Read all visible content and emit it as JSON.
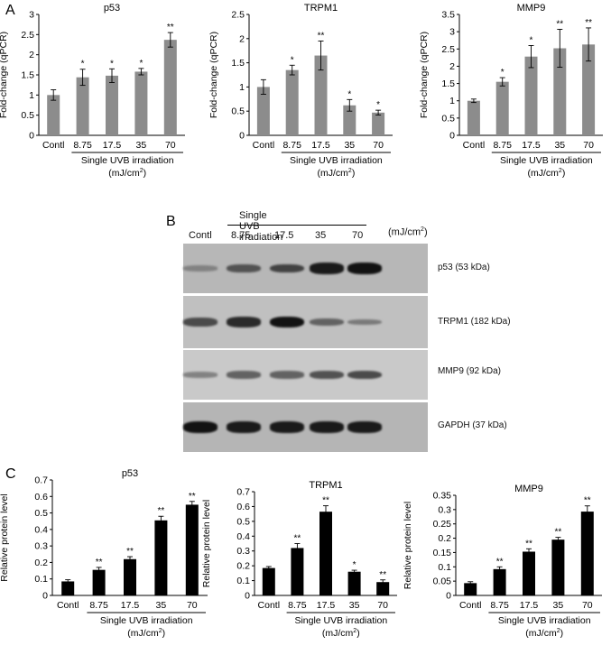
{
  "panel_letters": [
    "A",
    "B",
    "C"
  ],
  "blot": {
    "treatment_label": "Single UVB irradiation",
    "lanes": [
      "Contl",
      "8.75",
      "17.5",
      "35",
      "70"
    ],
    "unit_prefix": "(mJ/cm",
    "unit_sup": "2",
    "unit_suffix": ")",
    "rows": [
      {
        "label": "p53 (53 kDa)",
        "intensity": [
          0.25,
          0.55,
          0.65,
          0.9,
          0.95
        ],
        "bg": "#b7b7b7"
      },
      {
        "label": "TRPM1 (182 kDa)",
        "intensity": [
          0.6,
          0.8,
          0.95,
          0.45,
          0.3
        ],
        "bg": "#c0c0c0"
      },
      {
        "label": "MMP9 (92 kDa)",
        "intensity": [
          0.25,
          0.45,
          0.45,
          0.55,
          0.6
        ],
        "bg": "#c9c9c9"
      },
      {
        "label": "GAPDH (37 kDa)",
        "intensity": [
          0.95,
          0.9,
          0.9,
          0.9,
          0.9
        ],
        "bg": "#b5b5b5"
      }
    ]
  },
  "chart_data": [
    {
      "type": "bar",
      "panel": "A",
      "title": "p53",
      "ylabel": "Fold-change (qPCR)",
      "categories": [
        "Contl",
        "8.75",
        "17.5",
        "35",
        "70"
      ],
      "values": [
        1.0,
        1.44,
        1.48,
        1.58,
        2.37
      ],
      "errors": [
        0.13,
        0.2,
        0.17,
        0.08,
        0.18
      ],
      "significance": [
        "",
        "*",
        "*",
        "*",
        "**"
      ],
      "yticks": [
        "0",
        "0.5",
        "1",
        "1.5",
        "2",
        "2.5",
        "3"
      ],
      "ylim": [
        0,
        3
      ],
      "xlabel_line1": "Single UVB irradiation",
      "xlabel_line2_prefix": "(mJ/cm",
      "xlabel_sup": "2",
      "xlabel_line2_suffix": ")",
      "bar_color": "#8c8c8c"
    },
    {
      "type": "bar",
      "panel": "A",
      "title": "TRPM1",
      "ylabel": "Fold-change (qPCR)",
      "categories": [
        "Contl",
        "8.75",
        "17.5",
        "35",
        "70"
      ],
      "values": [
        1.0,
        1.35,
        1.65,
        0.62,
        0.47
      ],
      "errors": [
        0.15,
        0.1,
        0.3,
        0.12,
        0.05
      ],
      "significance": [
        "",
        "*",
        "**",
        "*",
        "*"
      ],
      "yticks": [
        "0",
        "0.5",
        "1",
        "1.5",
        "2",
        "2.5"
      ],
      "ylim": [
        0,
        2.5
      ],
      "xlabel_line1": "Single UVB irradiation",
      "xlabel_line2_prefix": "(mJ/cm",
      "xlabel_sup": "2",
      "xlabel_line2_suffix": ")",
      "bar_color": "#8c8c8c"
    },
    {
      "type": "bar",
      "panel": "A",
      "title": "MMP9",
      "ylabel": "Fold-change (qPCR)",
      "categories": [
        "Contl",
        "8.75",
        "17.5",
        "35",
        "70"
      ],
      "values": [
        1.0,
        1.55,
        2.28,
        2.52,
        2.63
      ],
      "errors": [
        0.05,
        0.12,
        0.32,
        0.55,
        0.48
      ],
      "significance": [
        "",
        "*",
        "*",
        "**",
        "**"
      ],
      "yticks": [
        "0",
        "0.5",
        "1",
        "1.5",
        "2",
        "2.5",
        "3",
        "3.5"
      ],
      "ylim": [
        0,
        3.5
      ],
      "xlabel_line1": "Single UVB irradiation",
      "xlabel_line2_prefix": "(mJ/cm",
      "xlabel_sup": "2",
      "xlabel_line2_suffix": ")",
      "bar_color": "#8c8c8c"
    },
    {
      "type": "bar",
      "panel": "C",
      "title": "p53",
      "ylabel": "Relative protein level",
      "categories": [
        "Contl",
        "8.75",
        "17.5",
        "35",
        "70"
      ],
      "values": [
        0.085,
        0.155,
        0.22,
        0.455,
        0.55
      ],
      "errors": [
        0.01,
        0.015,
        0.015,
        0.025,
        0.02
      ],
      "significance": [
        "",
        "**",
        "**",
        "**",
        "**"
      ],
      "yticks": [
        "0",
        "0.1",
        "0.2",
        "0.3",
        "0.4",
        "0.5",
        "0.6",
        "0.7"
      ],
      "ylim": [
        0,
        0.7
      ],
      "xlabel_line1": "Single UVB irradiation",
      "xlabel_line2_prefix": "(mJ/cm",
      "xlabel_sup": "2",
      "xlabel_line2_suffix": ")",
      "bar_color": "#000000"
    },
    {
      "type": "bar",
      "panel": "C",
      "title": "TRPM1",
      "ylabel": "Relative protein level",
      "categories": [
        "Contl",
        "8.75",
        "17.5",
        "35",
        "70"
      ],
      "values": [
        0.185,
        0.32,
        0.565,
        0.16,
        0.09
      ],
      "errors": [
        0.01,
        0.03,
        0.04,
        0.01,
        0.015
      ],
      "significance": [
        "",
        "**",
        "**",
        "*",
        "**"
      ],
      "yticks": [
        "0",
        "0.1",
        "0.2",
        "0.3",
        "0.4",
        "0.5",
        "0.6",
        "0.7"
      ],
      "ylim": [
        0,
        0.7
      ],
      "xlabel_line1": "Single UVB irradiation",
      "xlabel_line2_prefix": "(mJ/cm",
      "xlabel_sup": "2",
      "xlabel_line2_suffix": ")",
      "bar_color": "#000000"
    },
    {
      "type": "bar",
      "panel": "C",
      "title": "MMP9",
      "ylabel": "Relative protein level",
      "categories": [
        "Contl",
        "8.75",
        "17.5",
        "35",
        "70"
      ],
      "values": [
        0.043,
        0.092,
        0.153,
        0.195,
        0.293
      ],
      "errors": [
        0.005,
        0.008,
        0.01,
        0.008,
        0.02
      ],
      "significance": [
        "",
        "**",
        "**",
        "**",
        "**"
      ],
      "yticks": [
        "0",
        "0.05",
        "0.1",
        "0.15",
        "0.2",
        "0.25",
        "0.3",
        "0.35"
      ],
      "ylim": [
        0,
        0.35
      ],
      "xlabel_line1": "Single UVB irradiation",
      "xlabel_line2_prefix": "(mJ/cm",
      "xlabel_sup": "2",
      "xlabel_line2_suffix": ")",
      "bar_color": "#000000"
    }
  ]
}
